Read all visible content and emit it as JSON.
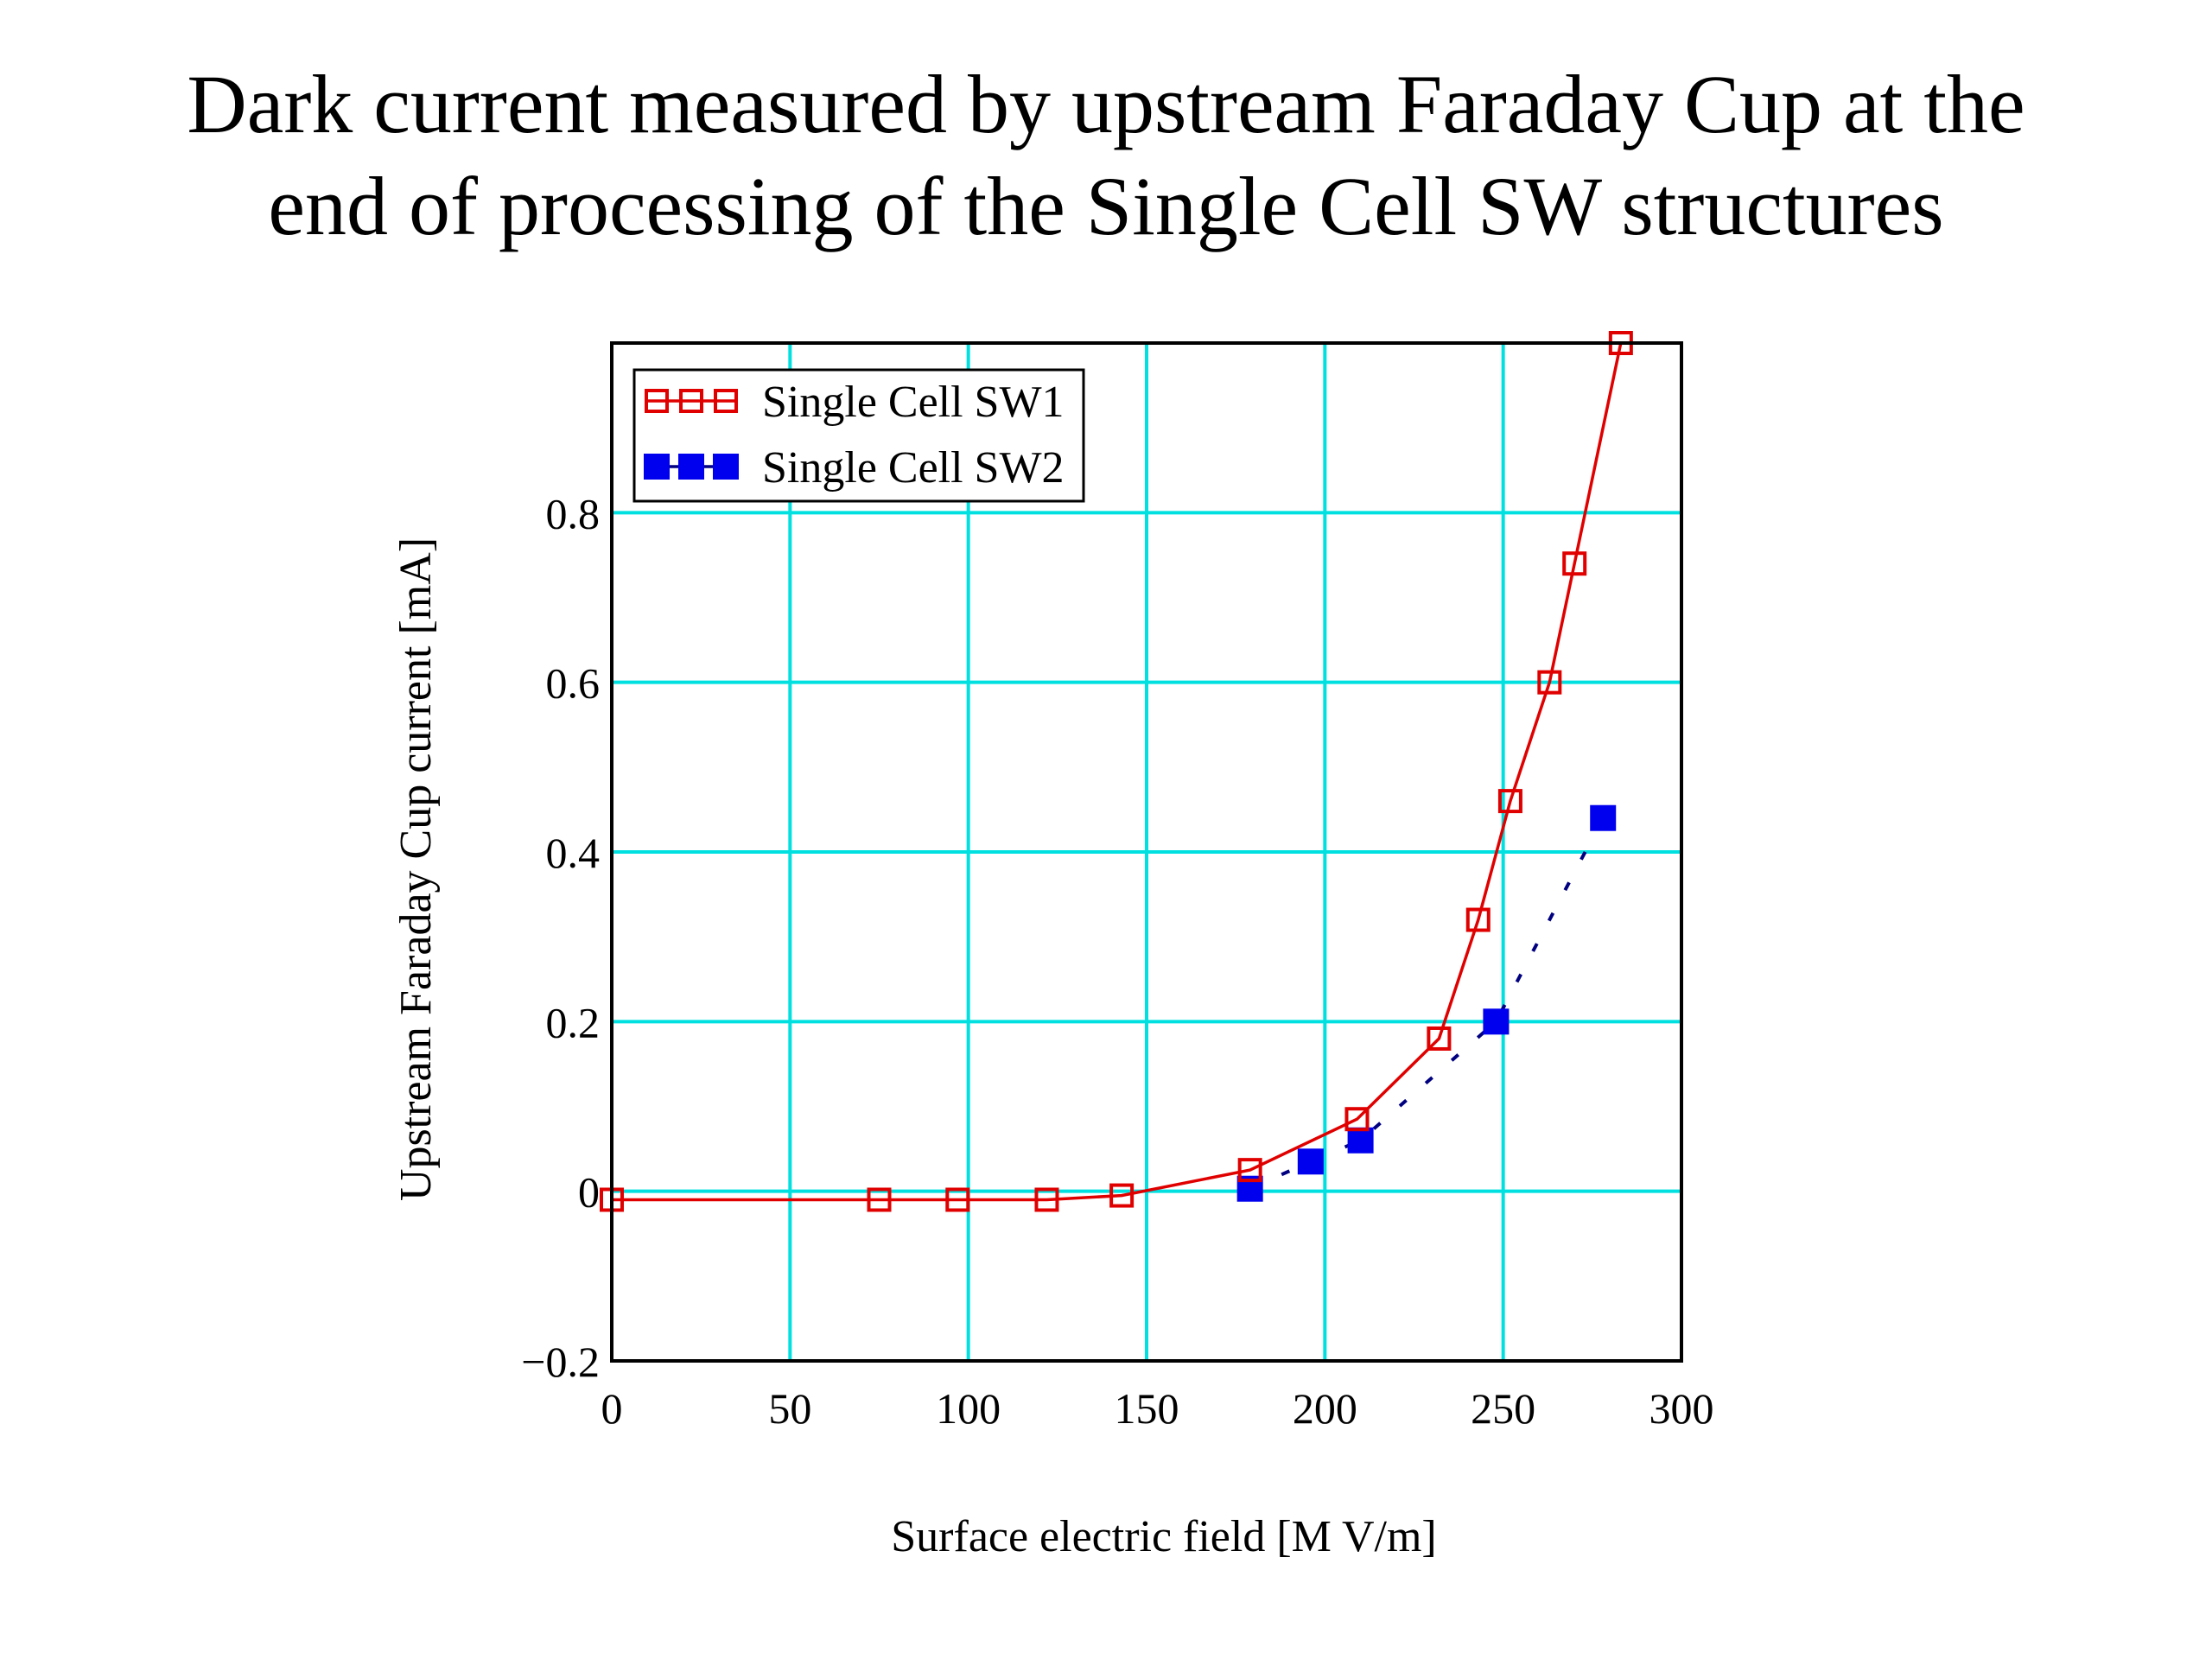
{
  "slide": {
    "title_line1": "Dark current measured by upstream Faraday Cup at the",
    "title_line2": "end of processing of the Single Cell SW structures"
  },
  "chart_data": {
    "type": "line",
    "title": "",
    "xlabel": "Surface electric field [M V/m]",
    "ylabel": "Upstream Faraday Cup current [mA]",
    "xlim": [
      0,
      300
    ],
    "ylim": [
      -0.2,
      1.0
    ],
    "xticks": [
      0,
      50,
      100,
      150,
      200,
      250,
      300
    ],
    "yticks": [
      -0.2,
      0,
      0.2,
      0.4,
      0.6,
      0.8
    ],
    "ytick_labels": [
      "−0.2",
      "0",
      "0.2",
      "0.4",
      "0.6",
      "0.8"
    ],
    "grid": true,
    "grid_color": "#00e0e0",
    "legend_position": "top-left",
    "series": [
      {
        "name": "Single Cell SW1",
        "color": "#e00000",
        "marker": "open-square",
        "line": "solid",
        "x": [
          0,
          75,
          97,
          122,
          143,
          179,
          209,
          232,
          243,
          252,
          263,
          270,
          283
        ],
        "y": [
          -0.01,
          -0.01,
          -0.01,
          -0.01,
          -0.005,
          0.025,
          0.085,
          0.18,
          0.32,
          0.46,
          0.6,
          0.74,
          1.0
        ]
      },
      {
        "name": "Single Cell SW2",
        "color": "#0000ee",
        "marker": "filled-square",
        "line": "dotted",
        "line_color": "#000080",
        "x": [
          179,
          196,
          210,
          248,
          278
        ],
        "y": [
          0.003,
          0.035,
          0.06,
          0.2,
          0.44
        ]
      }
    ]
  }
}
